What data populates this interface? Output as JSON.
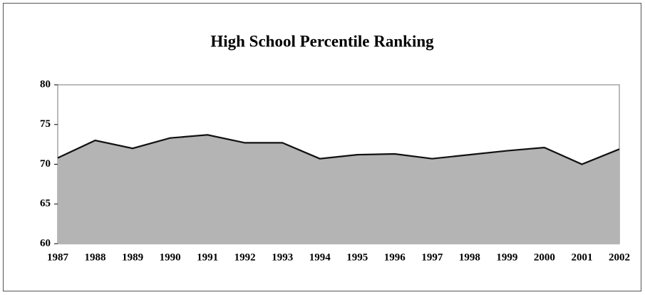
{
  "chart_data": {
    "type": "area",
    "title": "High School Percentile Ranking",
    "categories": [
      "1987",
      "1988",
      "1989",
      "1990",
      "1991",
      "1992",
      "1993",
      "1994",
      "1995",
      "1996",
      "1997",
      "1998",
      "1999",
      "2000",
      "2001",
      "2002"
    ],
    "values": [
      70.8,
      73.0,
      72.0,
      73.3,
      73.7,
      72.7,
      72.7,
      70.7,
      71.2,
      71.3,
      70.7,
      71.2,
      71.7,
      72.1,
      70.0,
      71.9
    ],
    "color": "#b4b4b4",
    "ylim": [
      60,
      80
    ],
    "yticks": [
      60,
      65,
      70,
      75,
      80
    ],
    "grid": false
  }
}
